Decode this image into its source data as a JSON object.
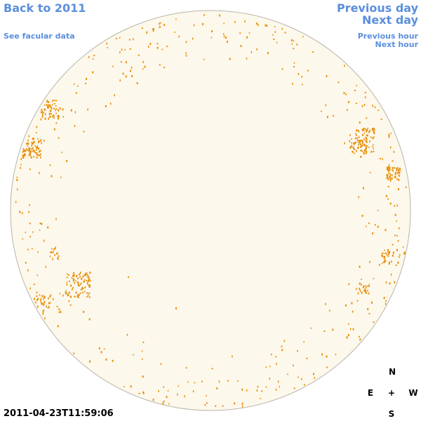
{
  "header": {
    "back_link": "Back to 2011",
    "facular_link": "See facular data"
  },
  "navigation": {
    "previous_day": "Previous day",
    "next_day": "Next day",
    "previous_hour": "Previous hour",
    "next_hour": "Next hour"
  },
  "timestamp": "2011-04-23T11:59:06",
  "compass": {
    "north": "N",
    "east": "E",
    "center": "+",
    "west": "W",
    "south": "S"
  }
}
